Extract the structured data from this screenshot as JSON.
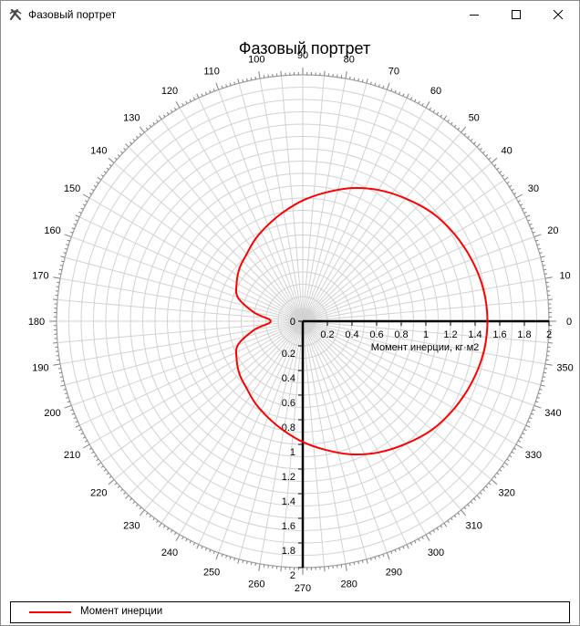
{
  "window": {
    "title": "Фазовый портрет",
    "icon": "app-logo-icon",
    "controls": {
      "minimize": "minimize-icon",
      "maximize": "maximize-icon",
      "close": "close-icon"
    }
  },
  "chart_data": {
    "type": "polar-line",
    "title": "Фазовый портрет",
    "radial_axis_label": "Момент инерции, кг·м2",
    "radial_range": [
      0,
      2
    ],
    "radial_ticks": [
      "0",
      "0.2",
      "0.4",
      "0.6",
      "0.8",
      "1",
      "1.2",
      "1.4",
      "1.6",
      "1.8",
      "2"
    ],
    "angle_ticks": [
      "0",
      "10",
      "20",
      "30",
      "40",
      "50",
      "60",
      "70",
      "80",
      "90",
      "100",
      "110",
      "120",
      "130",
      "140",
      "150",
      "160",
      "170",
      "180",
      "190",
      "200",
      "210",
      "220",
      "230",
      "240",
      "250",
      "260",
      "270",
      "280",
      "290",
      "300",
      "310",
      "320",
      "330",
      "340",
      "350"
    ],
    "angle_unit": "degrees",
    "grid": true,
    "legend_position": "bottom",
    "series": [
      {
        "name": "Момент инерции",
        "color": "#ff0000",
        "points": [
          [
            0,
            1.5
          ],
          [
            10,
            1.49
          ],
          [
            20,
            1.46
          ],
          [
            30,
            1.42
          ],
          [
            40,
            1.37
          ],
          [
            50,
            1.3
          ],
          [
            60,
            1.23
          ],
          [
            70,
            1.15
          ],
          [
            80,
            1.06
          ],
          [
            90,
            0.98
          ],
          [
            100,
            0.9
          ],
          [
            110,
            0.83
          ],
          [
            120,
            0.77
          ],
          [
            130,
            0.71
          ],
          [
            140,
            0.67
          ],
          [
            150,
            0.62
          ],
          [
            160,
            0.56
          ],
          [
            170,
            0.4
          ],
          [
            180,
            0.26
          ],
          [
            190,
            0.4
          ],
          [
            200,
            0.56
          ],
          [
            210,
            0.62
          ],
          [
            220,
            0.67
          ],
          [
            230,
            0.71
          ],
          [
            240,
            0.77
          ],
          [
            250,
            0.83
          ],
          [
            260,
            0.9
          ],
          [
            270,
            0.98
          ],
          [
            280,
            1.06
          ],
          [
            290,
            1.15
          ],
          [
            300,
            1.23
          ],
          [
            310,
            1.3
          ],
          [
            320,
            1.37
          ],
          [
            330,
            1.42
          ],
          [
            340,
            1.46
          ],
          [
            350,
            1.49
          ],
          [
            360,
            1.5
          ]
        ]
      }
    ]
  }
}
